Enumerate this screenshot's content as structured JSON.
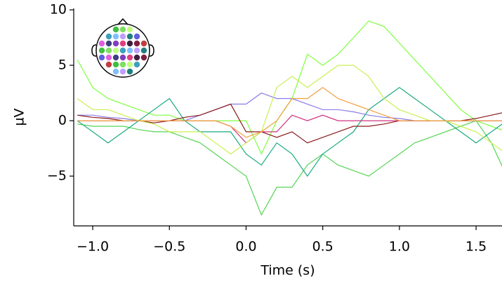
{
  "chart_data": {
    "type": "line",
    "x_label": "Time (s)",
    "y_label": "µV",
    "x": [
      -1.1,
      -1.0,
      -0.9,
      -0.8,
      -0.7,
      -0.6,
      -0.5,
      -0.4,
      -0.3,
      -0.2,
      -0.1,
      0.0,
      0.1,
      0.2,
      0.3,
      0.4,
      0.5,
      0.6,
      0.7,
      0.8,
      0.9,
      1.0,
      1.1,
      1.2,
      1.3,
      1.4,
      1.5,
      1.6,
      1.7
    ],
    "xlim": [
      -1.124,
      1.669
    ],
    "ylim": [
      -9.49,
      10.13
    ],
    "xticks": [
      {
        "value": -1.0,
        "label": "−1.0"
      },
      {
        "value": -0.5,
        "label": "−0.5"
      },
      {
        "value": 0.0,
        "label": "0.0"
      },
      0.5,
      {
        "value": 1.0,
        "label": "1.0"
      },
      1.5
    ],
    "yticks": [
      {
        "value": -5,
        "label": "−5"
      },
      0,
      5,
      10
    ],
    "series": [
      {
        "color": "#7fff3f",
        "values": [
          5.5,
          3,
          2,
          1.5,
          1,
          0.5,
          0.5,
          0,
          0,
          0,
          0,
          0,
          -3,
          0,
          2,
          6,
          5,
          6,
          7.5,
          9,
          8.5,
          7,
          5.5,
          4,
          2.5,
          1,
          0,
          -0.5,
          -1
        ]
      },
      {
        "color": "#55d455",
        "values": [
          -0.3,
          -0.5,
          -0.5,
          -0.5,
          -0.8,
          -1,
          -1,
          -1.5,
          -2,
          -3,
          -4,
          -5,
          -8.5,
          -6,
          -6,
          -4,
          -3,
          -4,
          -4.5,
          -5,
          -4,
          -3,
          -2,
          -1.5,
          -1,
          -0.5,
          0,
          -2,
          -5
        ]
      },
      {
        "color": "#1aaa80",
        "values": [
          0,
          -1,
          -2,
          -1,
          0,
          1,
          2,
          0,
          -1,
          -1,
          -1,
          -3,
          -4,
          -2,
          -3,
          -5,
          -3,
          -2,
          -1,
          1,
          2,
          3,
          2,
          1,
          0,
          -1,
          -2,
          -1,
          0
        ]
      },
      {
        "color": "#8a7be8",
        "values": [
          0.5,
          0.5,
          0.3,
          0.2,
          0,
          0,
          0,
          0,
          0.5,
          1,
          1.5,
          1.5,
          2.5,
          2,
          2,
          1.5,
          1,
          1,
          0.8,
          0.5,
          0.3,
          0.2,
          0,
          0,
          0,
          0,
          0,
          0,
          0
        ]
      },
      {
        "color": "#8b1a1a",
        "values": [
          0.5,
          0.3,
          0.2,
          0,
          0,
          -0.2,
          0,
          0.3,
          0.5,
          1,
          1.5,
          -1,
          -1,
          -1.5,
          -1,
          -2,
          -1.5,
          -1,
          -0.5,
          -0.5,
          -0.3,
          0,
          0,
          0,
          0,
          0,
          0.2,
          0.5,
          0.8
        ]
      },
      {
        "color": "#d0307f",
        "values": [
          0,
          0,
          0,
          0,
          0,
          0,
          0,
          0,
          0,
          0,
          -0.5,
          -2,
          -1,
          -1,
          0.5,
          0,
          0.5,
          0,
          0,
          0,
          0,
          0,
          0,
          0,
          0,
          0,
          0,
          0,
          0
        ]
      },
      {
        "color": "#c8f050",
        "values": [
          2,
          1,
          1,
          0.5,
          0,
          -0.3,
          -1,
          -1,
          -1,
          -2,
          -3,
          -2,
          -1,
          3,
          4,
          3,
          4,
          5,
          5,
          4,
          2,
          1,
          0.5,
          0,
          0,
          -0.5,
          -1,
          -2,
          -3
        ]
      },
      {
        "color": "#f0a040",
        "values": [
          0,
          0,
          0,
          0,
          0,
          0,
          0,
          0,
          0,
          0,
          -0.5,
          -1.5,
          -1,
          0,
          2,
          2,
          3,
          2,
          1.5,
          1,
          0.5,
          0,
          0,
          0,
          0,
          0,
          0,
          0,
          0
        ]
      }
    ]
  }
}
